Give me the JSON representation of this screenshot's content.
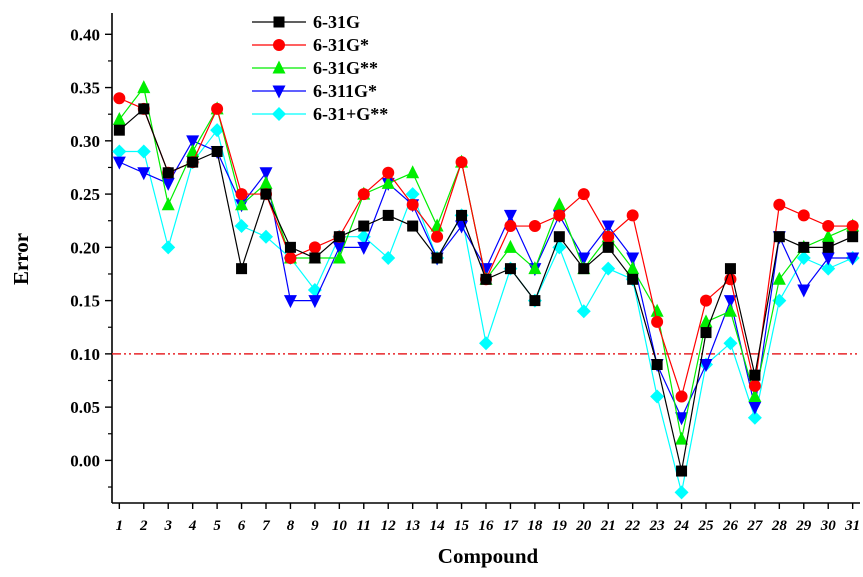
{
  "chart_data": {
    "type": "line",
    "xlabel": "Compound",
    "ylabel": "Error",
    "x": [
      1,
      2,
      3,
      4,
      5,
      6,
      7,
      8,
      9,
      10,
      11,
      12,
      13,
      14,
      15,
      16,
      17,
      18,
      19,
      20,
      21,
      22,
      23,
      24,
      25,
      26,
      27,
      28,
      29,
      30,
      31
    ],
    "xlim": [
      0.7,
      31.3
    ],
    "ylim": [
      -0.04,
      0.42
    ],
    "yticks": [
      "0.00",
      "0.05",
      "0.10",
      "0.15",
      "0.20",
      "0.25",
      "0.30",
      "0.35",
      "0.40"
    ],
    "ytick_values": [
      0.0,
      0.05,
      0.1,
      0.15,
      0.2,
      0.25,
      0.3,
      0.35,
      0.4
    ],
    "grid": false,
    "legend_position": "top-center",
    "reference_line": {
      "y": 0.1,
      "color": "#e8262a",
      "style": "dash-dot-dot"
    },
    "series": [
      {
        "name": "6-31G",
        "color": "#000000",
        "marker": "square",
        "values": [
          0.31,
          0.33,
          0.27,
          0.28,
          0.29,
          0.18,
          0.25,
          0.2,
          0.19,
          0.21,
          0.22,
          0.23,
          0.22,
          0.19,
          0.23,
          0.17,
          0.18,
          0.15,
          0.21,
          0.18,
          0.2,
          0.17,
          0.09,
          -0.01,
          0.12,
          0.18,
          0.08,
          0.21,
          0.2,
          0.2,
          0.21
        ]
      },
      {
        "name": "6-31G*",
        "color": "#ff0000",
        "marker": "circle",
        "values": [
          0.34,
          0.33,
          0.27,
          0.28,
          0.33,
          0.25,
          0.25,
          0.19,
          0.2,
          0.21,
          0.25,
          0.27,
          0.24,
          0.21,
          0.28,
          0.17,
          0.22,
          0.22,
          0.23,
          0.25,
          0.21,
          0.23,
          0.13,
          0.06,
          0.15,
          0.17,
          0.07,
          0.24,
          0.23,
          0.22,
          0.22
        ]
      },
      {
        "name": "6-31G**",
        "color": "#00ee00",
        "marker": "triangle-up",
        "values": [
          0.32,
          0.35,
          0.24,
          0.29,
          0.33,
          0.24,
          0.26,
          0.19,
          0.19,
          0.19,
          0.25,
          0.26,
          0.27,
          0.22,
          0.28,
          0.17,
          0.2,
          0.18,
          0.24,
          0.18,
          0.21,
          0.18,
          0.14,
          0.02,
          0.13,
          0.14,
          0.06,
          0.17,
          0.2,
          0.21,
          0.22
        ]
      },
      {
        "name": "6-311G*",
        "color": "#0000ff",
        "marker": "triangle-down",
        "values": [
          0.28,
          0.27,
          0.26,
          0.3,
          0.29,
          0.24,
          0.27,
          0.15,
          0.15,
          0.2,
          0.2,
          0.26,
          0.24,
          0.19,
          0.22,
          0.18,
          0.23,
          0.18,
          0.23,
          0.19,
          0.22,
          0.19,
          0.09,
          0.04,
          0.09,
          0.15,
          0.05,
          0.21,
          0.16,
          0.19,
          0.19
        ]
      },
      {
        "name": "6-31+G**",
        "color": "#00ffff",
        "marker": "diamond",
        "values": [
          0.29,
          0.29,
          0.2,
          0.28,
          0.31,
          0.22,
          0.21,
          0.19,
          0.16,
          0.21,
          0.21,
          0.19,
          0.25,
          0.19,
          0.23,
          0.11,
          0.18,
          0.15,
          0.2,
          0.14,
          0.18,
          0.17,
          0.06,
          -0.03,
          0.09,
          0.11,
          0.04,
          0.15,
          0.19,
          0.18,
          0.19
        ]
      }
    ]
  }
}
